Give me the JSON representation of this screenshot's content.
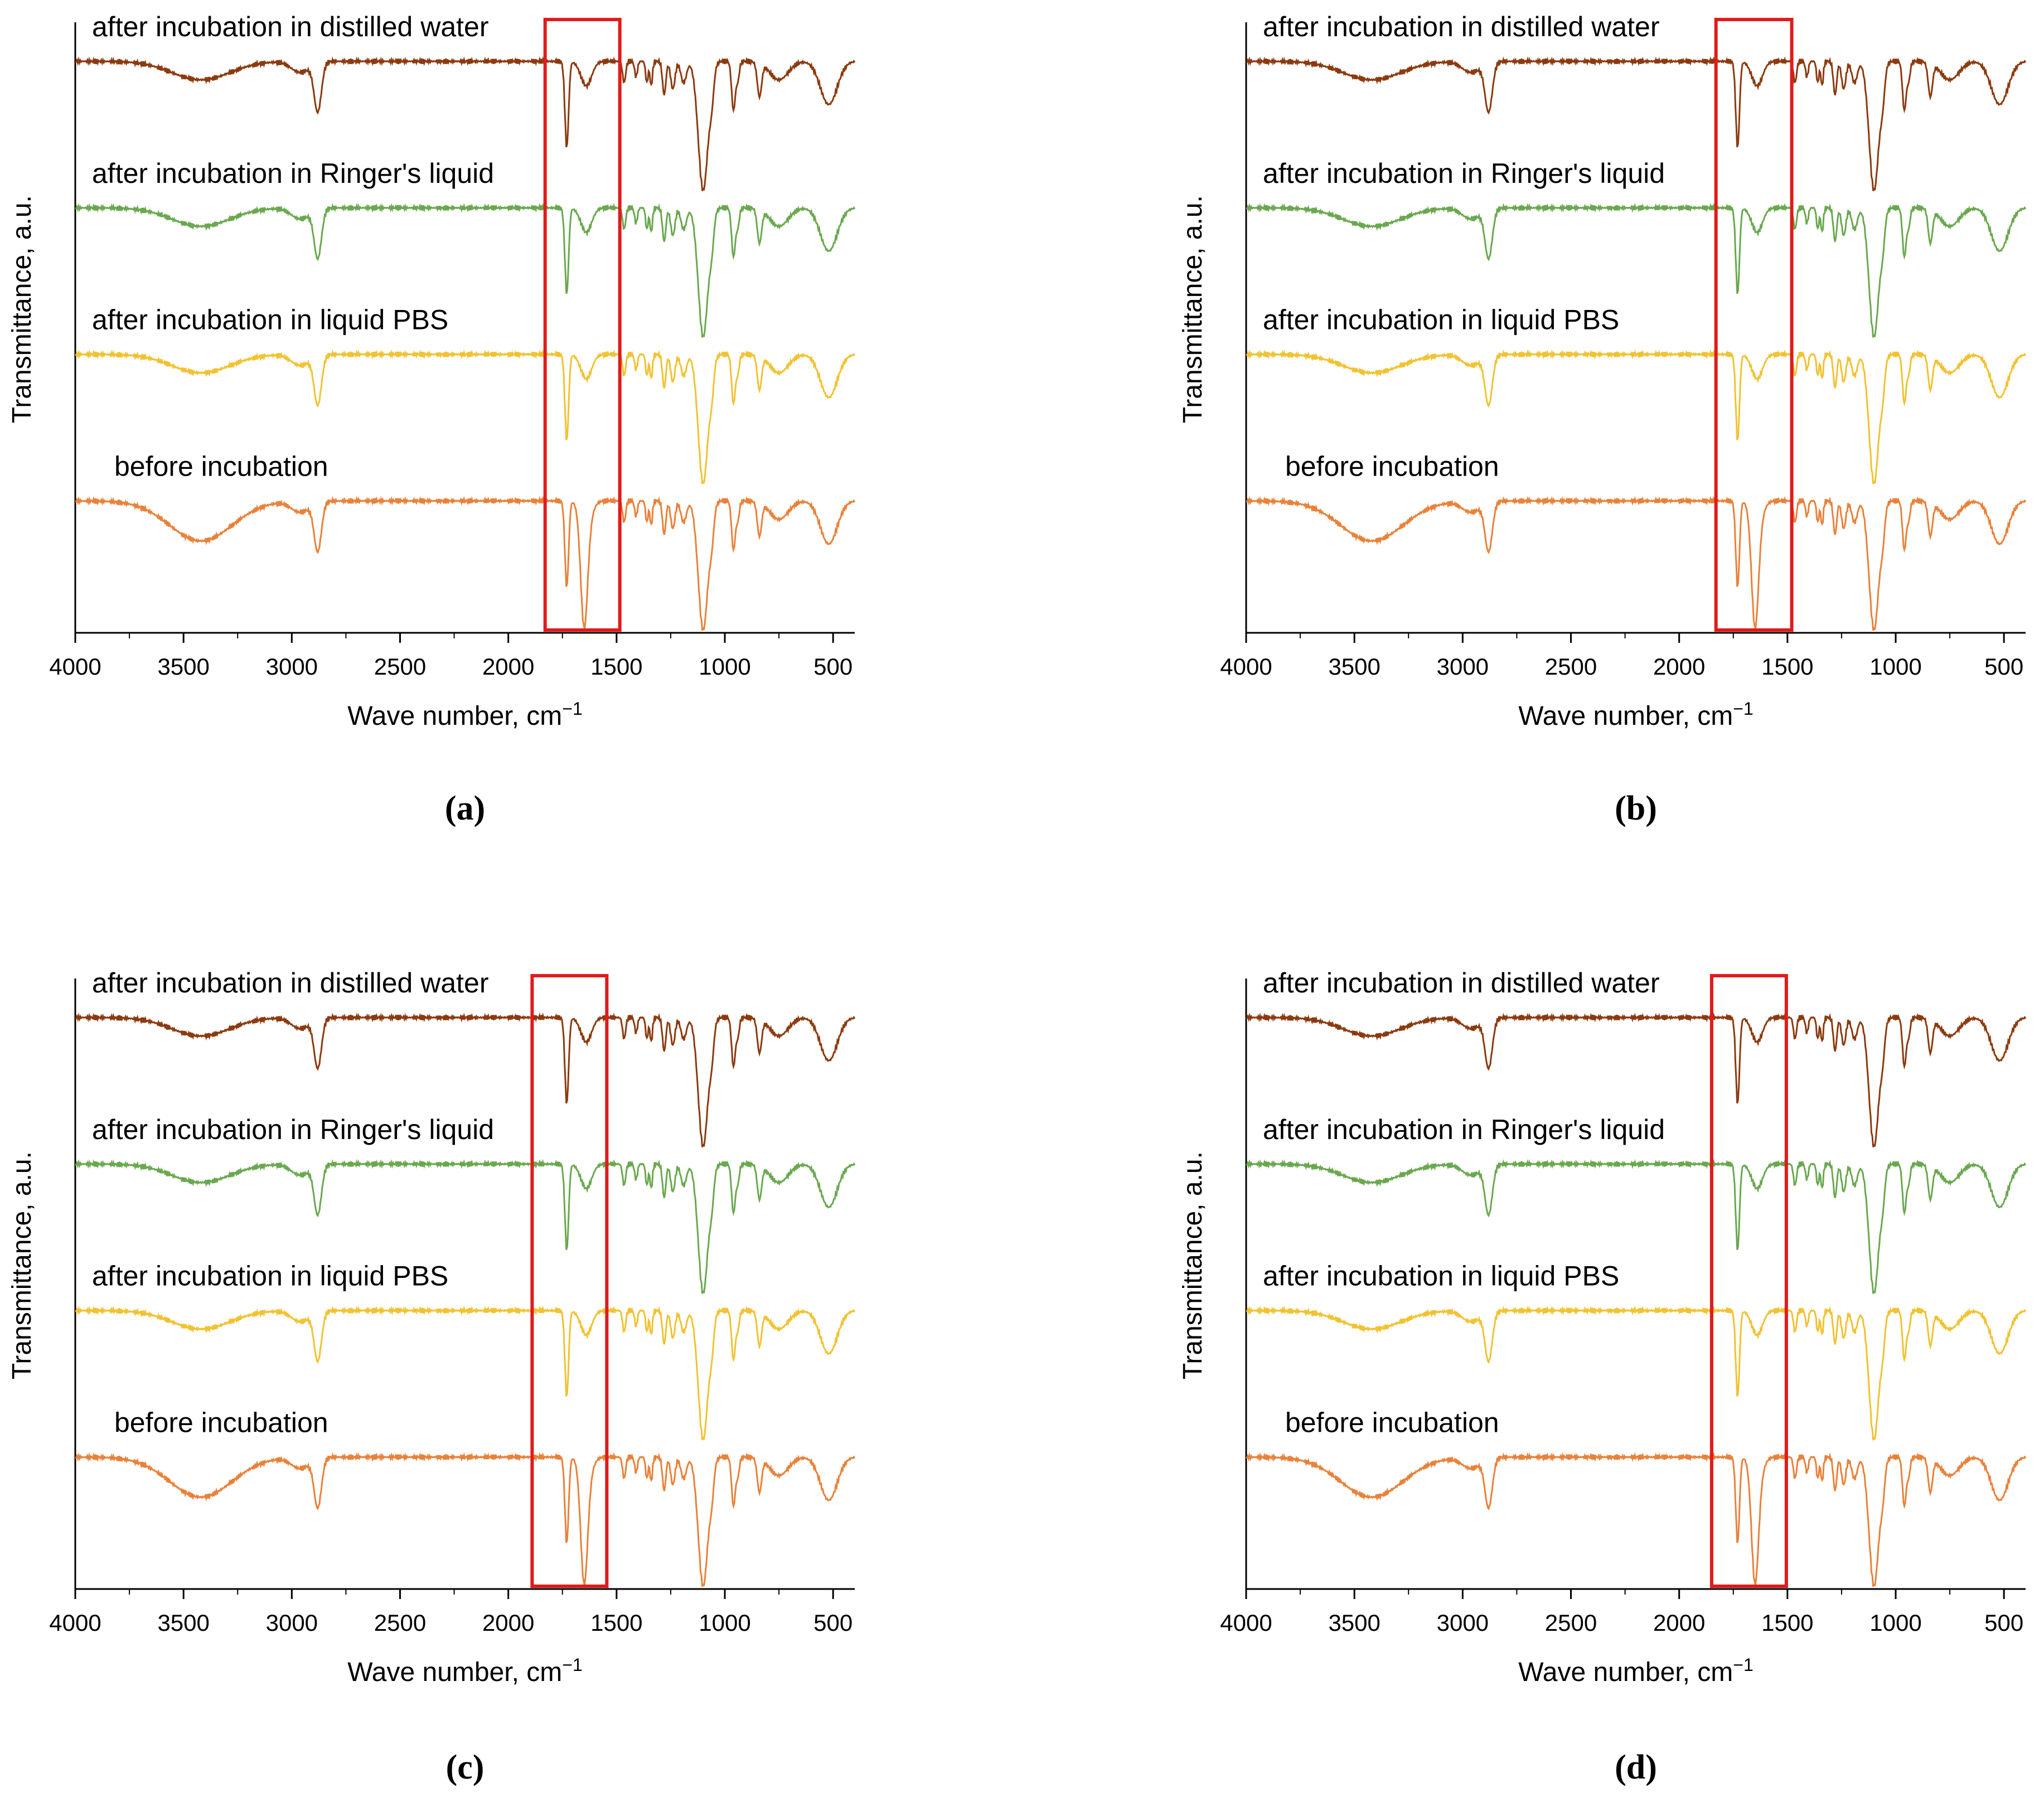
{
  "chart_data": [
    {
      "type": "line",
      "panel": "a",
      "caption": "(a)",
      "xlabel": "Wave number,  cm",
      "xlabel_sup": "−1",
      "ylabel": "Transmittance, a.u.",
      "xlim": [
        4000,
        400
      ],
      "x_ticks": [
        4000,
        3500,
        3000,
        2500,
        2000,
        1500,
        1000,
        500
      ],
      "highlight_range": [
        1830,
        1485
      ],
      "series": [
        {
          "name": "after incubation in distilled water",
          "color": "#8b3a0f"
        },
        {
          "name": "after incubation in Ringer's liquid",
          "color": "#6aa84f"
        },
        {
          "name": "after incubation in liquid PBS",
          "color": "#f1c232"
        },
        {
          "name": "before incubation",
          "color": "#e8823a"
        }
      ]
    },
    {
      "type": "line",
      "panel": "b",
      "caption": "(b)",
      "xlabel": "Wave number,  cm",
      "xlabel_sup": "−1",
      "ylabel": "Transmittance, a.u.",
      "xlim": [
        4000,
        400
      ],
      "x_ticks": [
        4000,
        3500,
        3000,
        2500,
        2000,
        1500,
        1000,
        500
      ],
      "highlight_range": [
        1830,
        1480
      ],
      "series": [
        {
          "name": "after incubation in distilled water",
          "color": "#8b3a0f"
        },
        {
          "name": "after incubation in Ringer's liquid",
          "color": "#6aa84f"
        },
        {
          "name": "after incubation in liquid PBS",
          "color": "#f1c232"
        },
        {
          "name": "before incubation",
          "color": "#e8823a"
        }
      ]
    },
    {
      "type": "line",
      "panel": "c",
      "caption": "(c)",
      "xlabel": "Wave number,  cm",
      "xlabel_sup": "−1",
      "ylabel": "Transmittance, a.u.",
      "xlim": [
        4000,
        400
      ],
      "x_ticks": [
        4000,
        3500,
        3000,
        2500,
        2000,
        1500,
        1000,
        500
      ],
      "highlight_range": [
        1890,
        1545
      ],
      "series": [
        {
          "name": "after incubation in distilled water",
          "color": "#8b3a0f"
        },
        {
          "name": "after incubation in Ringer's liquid",
          "color": "#6aa84f"
        },
        {
          "name": "after incubation in liquid PBS",
          "color": "#f1c232"
        },
        {
          "name": "before incubation",
          "color": "#e8823a"
        }
      ]
    },
    {
      "type": "line",
      "panel": "d",
      "caption": "(d)",
      "xlabel": "Wave number,  cm",
      "xlabel_sup": "−1",
      "ylabel": "Transmittance, a.u.",
      "xlim": [
        4000,
        400
      ],
      "x_ticks": [
        4000,
        3500,
        3000,
        2500,
        2000,
        1500,
        1000,
        500
      ],
      "highlight_range": [
        1850,
        1505
      ],
      "series": [
        {
          "name": "after incubation in distilled water",
          "color": "#8b3a0f"
        },
        {
          "name": "after incubation in Ringer's liquid",
          "color": "#6aa84f"
        },
        {
          "name": "after incubation in liquid PBS",
          "color": "#f1c232"
        },
        {
          "name": "before incubation",
          "color": "#e8823a"
        }
      ]
    }
  ],
  "highlight_color": "#e01b1b"
}
